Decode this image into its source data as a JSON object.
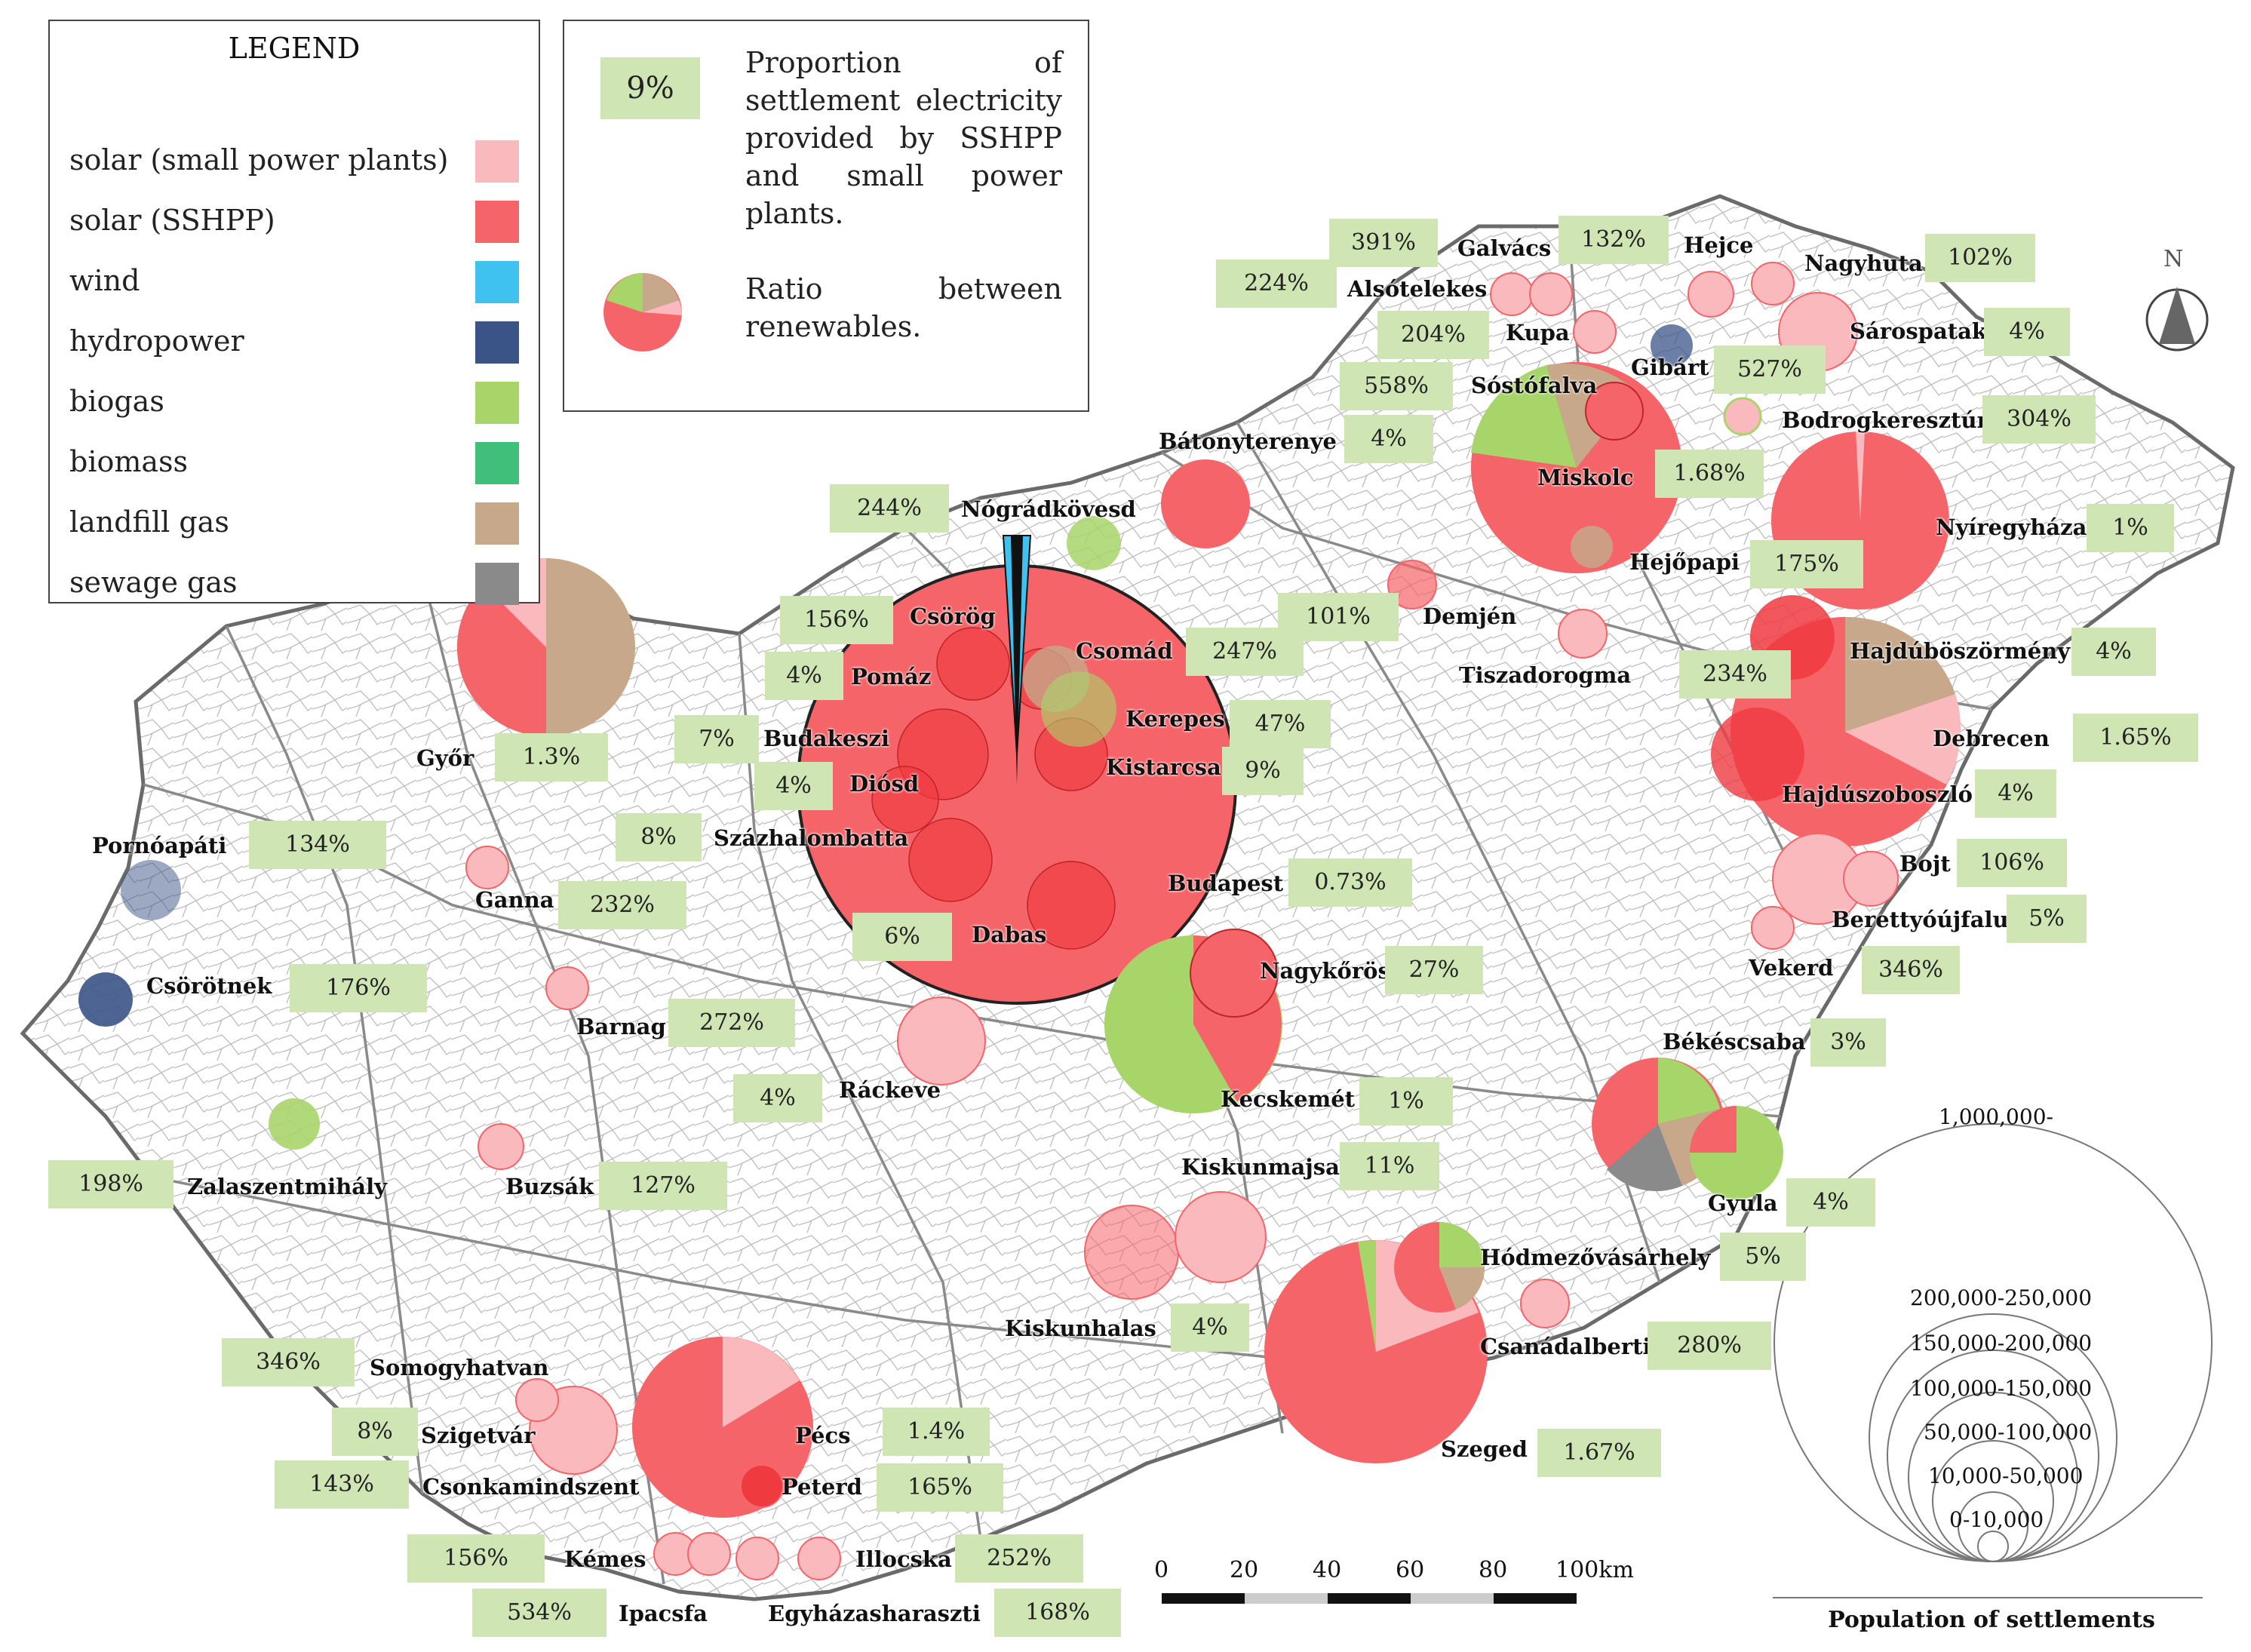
{
  "legend": {
    "title": "LEGEND",
    "items": [
      {
        "label": "solar (small power plants)",
        "color": "#f9b9bd"
      },
      {
        "label": "solar (SSHPP)",
        "color": "#f56468"
      },
      {
        "label": "wind",
        "color": "#3fc2ef"
      },
      {
        "label": "hydropower",
        "color": "#3b5488"
      },
      {
        "label": "biogas",
        "color": "#a8d56a"
      },
      {
        "label": "biomass",
        "color": "#3fbf7a"
      },
      {
        "label": "landfill gas",
        "color": "#c7a88a"
      },
      {
        "label": "sewage gas",
        "color": "#8a8a8a"
      }
    ]
  },
  "info": {
    "pct": "9%",
    "proportion_text": "Proportion of settlement electricity provided by SSHPP and small power plants.",
    "ratio_text": "Ratio between renewables."
  },
  "compass": {
    "label": "N"
  },
  "scale_bar": {
    "ticks": [
      "0",
      "20",
      "40",
      "60",
      "80",
      "100km"
    ]
  },
  "population": {
    "title": "Population of settlements",
    "classes": [
      "1,000,000-",
      "200,000-250,000",
      "150,000-200,000",
      "100,000-150,000",
      "50,000-100,000",
      "10,000-50,000",
      "0-10,000"
    ]
  },
  "settlements": [
    {
      "name": "Galvács",
      "pct": "391%"
    },
    {
      "name": "Alsótelekes",
      "pct": "224%"
    },
    {
      "name": "Hejce",
      "pct": "132%"
    },
    {
      "name": "Nagyhuta",
      "pct": "102%"
    },
    {
      "name": "Kupa",
      "pct": "204%"
    },
    {
      "name": "Sárospatak",
      "pct": "4%"
    },
    {
      "name": "Gibárt",
      "pct": "527%"
    },
    {
      "name": "Sóstófalva",
      "pct": "558%"
    },
    {
      "name": "Bodrogkeresztúr",
      "pct": "304%"
    },
    {
      "name": "Bátonyterenye",
      "pct": "4%"
    },
    {
      "name": "Miskolc",
      "pct": "1.68%"
    },
    {
      "name": "Nyíregyháza",
      "pct": "1%"
    },
    {
      "name": "Nógrádkövesd",
      "pct": "244%"
    },
    {
      "name": "Hejőpapi",
      "pct": "175%"
    },
    {
      "name": "Csörög",
      "pct": "156%"
    },
    {
      "name": "Demjén",
      "pct": "101%"
    },
    {
      "name": "Csomád",
      "pct": "247%"
    },
    {
      "name": "Pomáz",
      "pct": "4%"
    },
    {
      "name": "Tiszadorogma",
      "pct": "234%"
    },
    {
      "name": "Hajdúböszörmény",
      "pct": "4%"
    },
    {
      "name": "Kerepes",
      "pct": "47%"
    },
    {
      "name": "Budakeszi",
      "pct": "7%"
    },
    {
      "name": "Győr",
      "pct": "1.3%"
    },
    {
      "name": "Debrecen",
      "pct": "1.65%"
    },
    {
      "name": "Kistarcsa",
      "pct": "9%"
    },
    {
      "name": "Diósd",
      "pct": "4%"
    },
    {
      "name": "Hajdúszoboszló",
      "pct": "4%"
    },
    {
      "name": "Pornóapáti",
      "pct": "134%"
    },
    {
      "name": "Százhalombatta",
      "pct": "8%"
    },
    {
      "name": "Bojt",
      "pct": "106%"
    },
    {
      "name": "Budapest",
      "pct": "0.73%"
    },
    {
      "name": "Ganna",
      "pct": "232%"
    },
    {
      "name": "Berettyóújfalu",
      "pct": "5%"
    },
    {
      "name": "Dabas",
      "pct": "6%"
    },
    {
      "name": "Nagykőrös",
      "pct": "27%"
    },
    {
      "name": "Vekerd",
      "pct": "346%"
    },
    {
      "name": "Csörötnek",
      "pct": "176%"
    },
    {
      "name": "Barnag",
      "pct": "272%"
    },
    {
      "name": "Békéscsaba",
      "pct": "3%"
    },
    {
      "name": "Ráckeve",
      "pct": "4%"
    },
    {
      "name": "Kecskemét",
      "pct": "1%"
    },
    {
      "name": "Zalaszentmihály",
      "pct": "198%"
    },
    {
      "name": "Buzsák",
      "pct": "127%"
    },
    {
      "name": "Kiskunmajsa",
      "pct": "11%"
    },
    {
      "name": "Gyula",
      "pct": "4%"
    },
    {
      "name": "Hódmezővásárhely",
      "pct": "5%"
    },
    {
      "name": "Kiskunhalas",
      "pct": "4%"
    },
    {
      "name": "Somogyhatvan",
      "pct": "346%"
    },
    {
      "name": "Csanádalberti",
      "pct": "280%"
    },
    {
      "name": "Szigetvár",
      "pct": "8%"
    },
    {
      "name": "Pécs",
      "pct": "1.4%"
    },
    {
      "name": "Csonkamindszent",
      "pct": "143%"
    },
    {
      "name": "Szeged",
      "pct": "1.67%"
    },
    {
      "name": "Peterd",
      "pct": "165%"
    },
    {
      "name": "Kémes",
      "pct": "156%"
    },
    {
      "name": "Illocska",
      "pct": "252%"
    },
    {
      "name": "Ipacsfa",
      "pct": "534%"
    },
    {
      "name": "Egyházasharaszti",
      "pct": "168%"
    }
  ]
}
